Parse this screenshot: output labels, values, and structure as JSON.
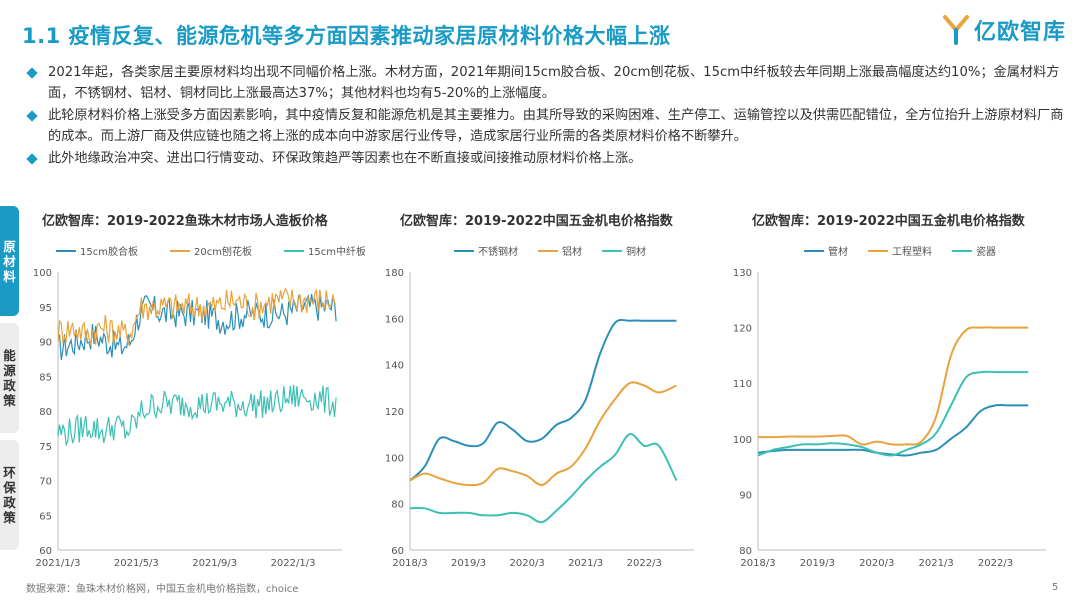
{
  "title": "1.1 疫情反复、能源危机等多方面因素推动家居原材料价格大幅上涨",
  "logo": {
    "text": "亿欧智库",
    "icon": "yiou-logo-icon"
  },
  "bullets": [
    "2021年起，各类家居主要原材料均出现不同幅价格上涨。木材方面，2021年期间15cm胶合板、20cm刨花板、15cm中纤板较去年同期上涨最高幅度达约10%；金属材料方面，不锈钢材、铝材、铜材同比上涨最高达37%；其他材料也均有5-20%的上涨幅度。",
    "此轮原材料价格上涨受多方面因素影响，其中疫情反复和能源危机是其主要推力。由其所导致的采购困难、生产停工、运输管控以及供需匹配错位，全方位抬升上游原材料厂商的成本。而上游厂商及供应链也随之将上涨的成本向中游家居行业传导，造成家居行业所需的各类原材料价格不断攀升。",
    "此外地缘政治冲突、进出口行情变动、环保政策趋严等因素也在不断直接或间接推动原材料价格上涨。"
  ],
  "side_tabs": [
    {
      "label": "原材料",
      "active": true
    },
    {
      "label": "能源政策",
      "active": false
    },
    {
      "label": "环保政策",
      "active": false
    }
  ],
  "colors": {
    "accent": "#1a9bc6",
    "blue": "#2a8fb8",
    "orange": "#e8a33d",
    "teal": "#3cc0b4"
  },
  "footer": "数据来源：鱼珠木材价格网，中国五金机电价格指数，choice",
  "page_number": "5",
  "chart_data": [
    {
      "type": "line",
      "title": "亿欧智库：2019-2022鱼珠木材市场人造板价格",
      "ylim": [
        60,
        100
      ],
      "yticks": [
        60,
        65,
        70,
        75,
        80,
        85,
        90,
        95,
        100
      ],
      "xlim": [
        0,
        14.5
      ],
      "xticks": [
        {
          "x": 0,
          "label": "2021/1/3"
        },
        {
          "x": 4,
          "label": "2021/5/3"
        },
        {
          "x": 8,
          "label": "2021/9/3"
        },
        {
          "x": 12,
          "label": "2022/1/3"
        }
      ],
      "jagged": true,
      "series": [
        {
          "name": "15cm胶合板",
          "color": "#2a8fb8",
          "x": [
            0,
            1,
            1.8,
            2.5,
            3.2,
            3.7,
            4.0,
            4.5,
            5.5,
            6.5,
            7.5,
            8.5,
            9.5,
            10.5,
            11.5,
            12.5,
            13.5,
            14.2
          ],
          "y": [
            89,
            90,
            91,
            90,
            89,
            90,
            93,
            95,
            94,
            94,
            94,
            93,
            94,
            94,
            94,
            95,
            95,
            95
          ]
        },
        {
          "name": "20cm刨花板",
          "color": "#e8a33d",
          "x": [
            0,
            0.8,
            1.5,
            2.2,
            3.0,
            3.5,
            3.8,
            4.2,
            5.0,
            6.0,
            7.0,
            8.0,
            9.0,
            10.0,
            11.0,
            12.0,
            13.0,
            14.2
          ],
          "y": [
            91.5,
            92,
            91,
            92,
            91.5,
            91,
            92,
            95,
            95,
            95,
            95,
            95,
            96,
            95,
            96,
            96,
            96,
            96
          ]
        },
        {
          "name": "15cm中纤板",
          "color": "#3cc0b4",
          "x": [
            0,
            0.8,
            1.5,
            2.3,
            3.0,
            3.5,
            3.9,
            4.3,
            5.0,
            6.0,
            7.0,
            8.0,
            9.0,
            10.0,
            11.0,
            12.0,
            13.0,
            14.2
          ],
          "y": [
            77,
            77,
            78,
            77,
            78,
            77,
            78,
            80,
            81,
            81,
            81,
            81,
            81,
            81,
            81,
            82,
            82,
            81
          ]
        }
      ]
    },
    {
      "type": "line",
      "title": "亿欧智库：2019-2022中国五金机电价格指数",
      "ylim": [
        60,
        180
      ],
      "yticks": [
        60,
        80,
        100,
        120,
        140,
        160,
        180
      ],
      "xlim": [
        2018.25,
        2023.1
      ],
      "xticks": [
        {
          "x": 2018.25,
          "label": "2018/3"
        },
        {
          "x": 2019.25,
          "label": "2019/3"
        },
        {
          "x": 2020.25,
          "label": "2020/3"
        },
        {
          "x": 2021.25,
          "label": "2021/3"
        },
        {
          "x": 2022.25,
          "label": "2022/3"
        }
      ],
      "jagged": false,
      "series": [
        {
          "name": "不锈钢材",
          "color": "#2a8fb8",
          "x": [
            2018.25,
            2018.5,
            2018.75,
            2019.0,
            2019.25,
            2019.5,
            2019.75,
            2020.0,
            2020.25,
            2020.5,
            2020.75,
            2021.0,
            2021.25,
            2021.5,
            2021.75,
            2022.0,
            2022.25,
            2022.5,
            2022.8
          ],
          "y": [
            90,
            96,
            108,
            107,
            105,
            106,
            115,
            112,
            107,
            108,
            114,
            117,
            125,
            145,
            158,
            159,
            159,
            159,
            159
          ]
        },
        {
          "name": "铝材",
          "color": "#e8a33d",
          "x": [
            2018.25,
            2018.5,
            2018.75,
            2019.0,
            2019.25,
            2019.5,
            2019.75,
            2020.0,
            2020.25,
            2020.5,
            2020.75,
            2021.0,
            2021.25,
            2021.5,
            2021.75,
            2022.0,
            2022.25,
            2022.5,
            2022.8
          ],
          "y": [
            90,
            93,
            91,
            89,
            88,
            89,
            95,
            94,
            92,
            88,
            93,
            96,
            104,
            116,
            125,
            132,
            131,
            128,
            131
          ]
        },
        {
          "name": "铜材",
          "color": "#3cc0b4",
          "x": [
            2018.25,
            2018.5,
            2018.75,
            2019.0,
            2019.25,
            2019.5,
            2019.75,
            2020.0,
            2020.25,
            2020.5,
            2020.75,
            2021.0,
            2021.25,
            2021.5,
            2021.75,
            2022.0,
            2022.25,
            2022.5,
            2022.8
          ],
          "y": [
            78,
            78,
            76,
            76,
            76,
            75,
            75,
            76,
            75,
            72,
            77,
            83,
            90,
            96,
            101,
            110,
            105,
            105,
            90
          ]
        }
      ]
    },
    {
      "type": "line",
      "title": "亿欧智库：2019-2022中国五金机电价格指数",
      "ylim": [
        80,
        130
      ],
      "yticks": [
        80,
        90,
        100,
        110,
        120,
        130
      ],
      "xlim": [
        2018.25,
        2023.1
      ],
      "xticks": [
        {
          "x": 2018.25,
          "label": "2018/3"
        },
        {
          "x": 2019.25,
          "label": "2019/3"
        },
        {
          "x": 2020.25,
          "label": "2020/3"
        },
        {
          "x": 2021.25,
          "label": "2021/3"
        },
        {
          "x": 2022.25,
          "label": "2022/3"
        }
      ],
      "jagged": false,
      "series": [
        {
          "name": "管材",
          "color": "#2a8fb8",
          "x": [
            2018.25,
            2018.5,
            2018.75,
            2019.0,
            2019.25,
            2019.5,
            2019.75,
            2020.0,
            2020.25,
            2020.5,
            2020.75,
            2021.0,
            2021.25,
            2021.5,
            2021.75,
            2022.0,
            2022.25,
            2022.5,
            2022.8
          ],
          "y": [
            97.5,
            97.8,
            98,
            98,
            98,
            98,
            98,
            98,
            97.5,
            97.2,
            97,
            97.5,
            98,
            100,
            102,
            105,
            106,
            106,
            106
          ]
        },
        {
          "name": "工程塑料",
          "color": "#e8a33d",
          "x": [
            2018.25,
            2018.5,
            2018.75,
            2019.0,
            2019.25,
            2019.5,
            2019.75,
            2020.0,
            2020.25,
            2020.5,
            2020.75,
            2021.0,
            2021.25,
            2021.5,
            2021.75,
            2022.0,
            2022.25,
            2022.5,
            2022.8
          ],
          "y": [
            100.3,
            100.3,
            100.4,
            100.4,
            100.4,
            100.5,
            100.5,
            99,
            99.5,
            99,
            99,
            99.5,
            104,
            115,
            119.5,
            120,
            120,
            120,
            120
          ]
        },
        {
          "name": "瓷器",
          "color": "#3cc0b4",
          "x": [
            2018.25,
            2018.5,
            2018.75,
            2019.0,
            2019.25,
            2019.5,
            2019.75,
            2020.0,
            2020.25,
            2020.5,
            2020.75,
            2021.0,
            2021.25,
            2021.5,
            2021.75,
            2022.0,
            2022.25,
            2022.5,
            2022.8
          ],
          "y": [
            97,
            98,
            98.5,
            99,
            99,
            99.2,
            99,
            98.5,
            97.5,
            97,
            98,
            99,
            101,
            106,
            111,
            112,
            112,
            112,
            112
          ]
        }
      ]
    }
  ]
}
